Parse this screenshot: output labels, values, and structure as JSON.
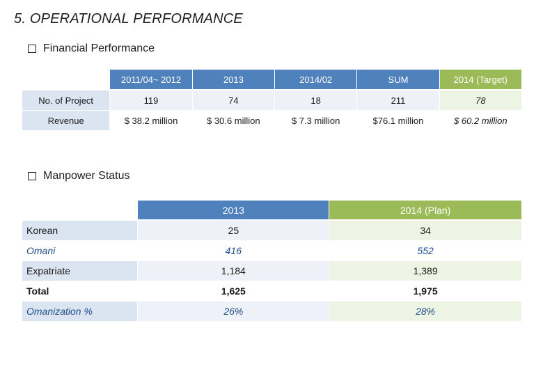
{
  "page": {
    "title": "5. OPERATIONAL PERFORMANCE"
  },
  "financial": {
    "heading": "Financial Performance",
    "headers": [
      "2011/04~ 2012",
      "2013",
      "2014/02",
      "SUM",
      "2014 (Target)"
    ],
    "rows": [
      {
        "label": "No. of Project",
        "values": [
          "119",
          "74",
          "18",
          "211",
          "78"
        ]
      },
      {
        "label": "Revenue",
        "values": [
          "$ 38.2 million",
          "$ 30.6 million",
          "$ 7.3 million",
          "$76.1 million",
          "$ 60.2 million"
        ]
      }
    ]
  },
  "manpower": {
    "heading": "Manpower Status",
    "headers": [
      "2013",
      "2014 (Plan)"
    ],
    "rows": [
      {
        "label": "Korean",
        "values": [
          "25",
          "34"
        ]
      },
      {
        "label": "Omani",
        "values": [
          "416",
          "552"
        ]
      },
      {
        "label": "Expatriate",
        "values": [
          "1,184",
          "1,389"
        ]
      },
      {
        "label": "Total",
        "values": [
          "1,625",
          "1,975"
        ]
      },
      {
        "label": "Omanization %",
        "values": [
          "26%",
          "28%"
        ]
      }
    ]
  },
  "colors": {
    "header_blue": "#4f81bd",
    "header_green": "#9bbb59",
    "label_bg": "#dbe5f1",
    "omani_text": "#1f4e8c"
  }
}
